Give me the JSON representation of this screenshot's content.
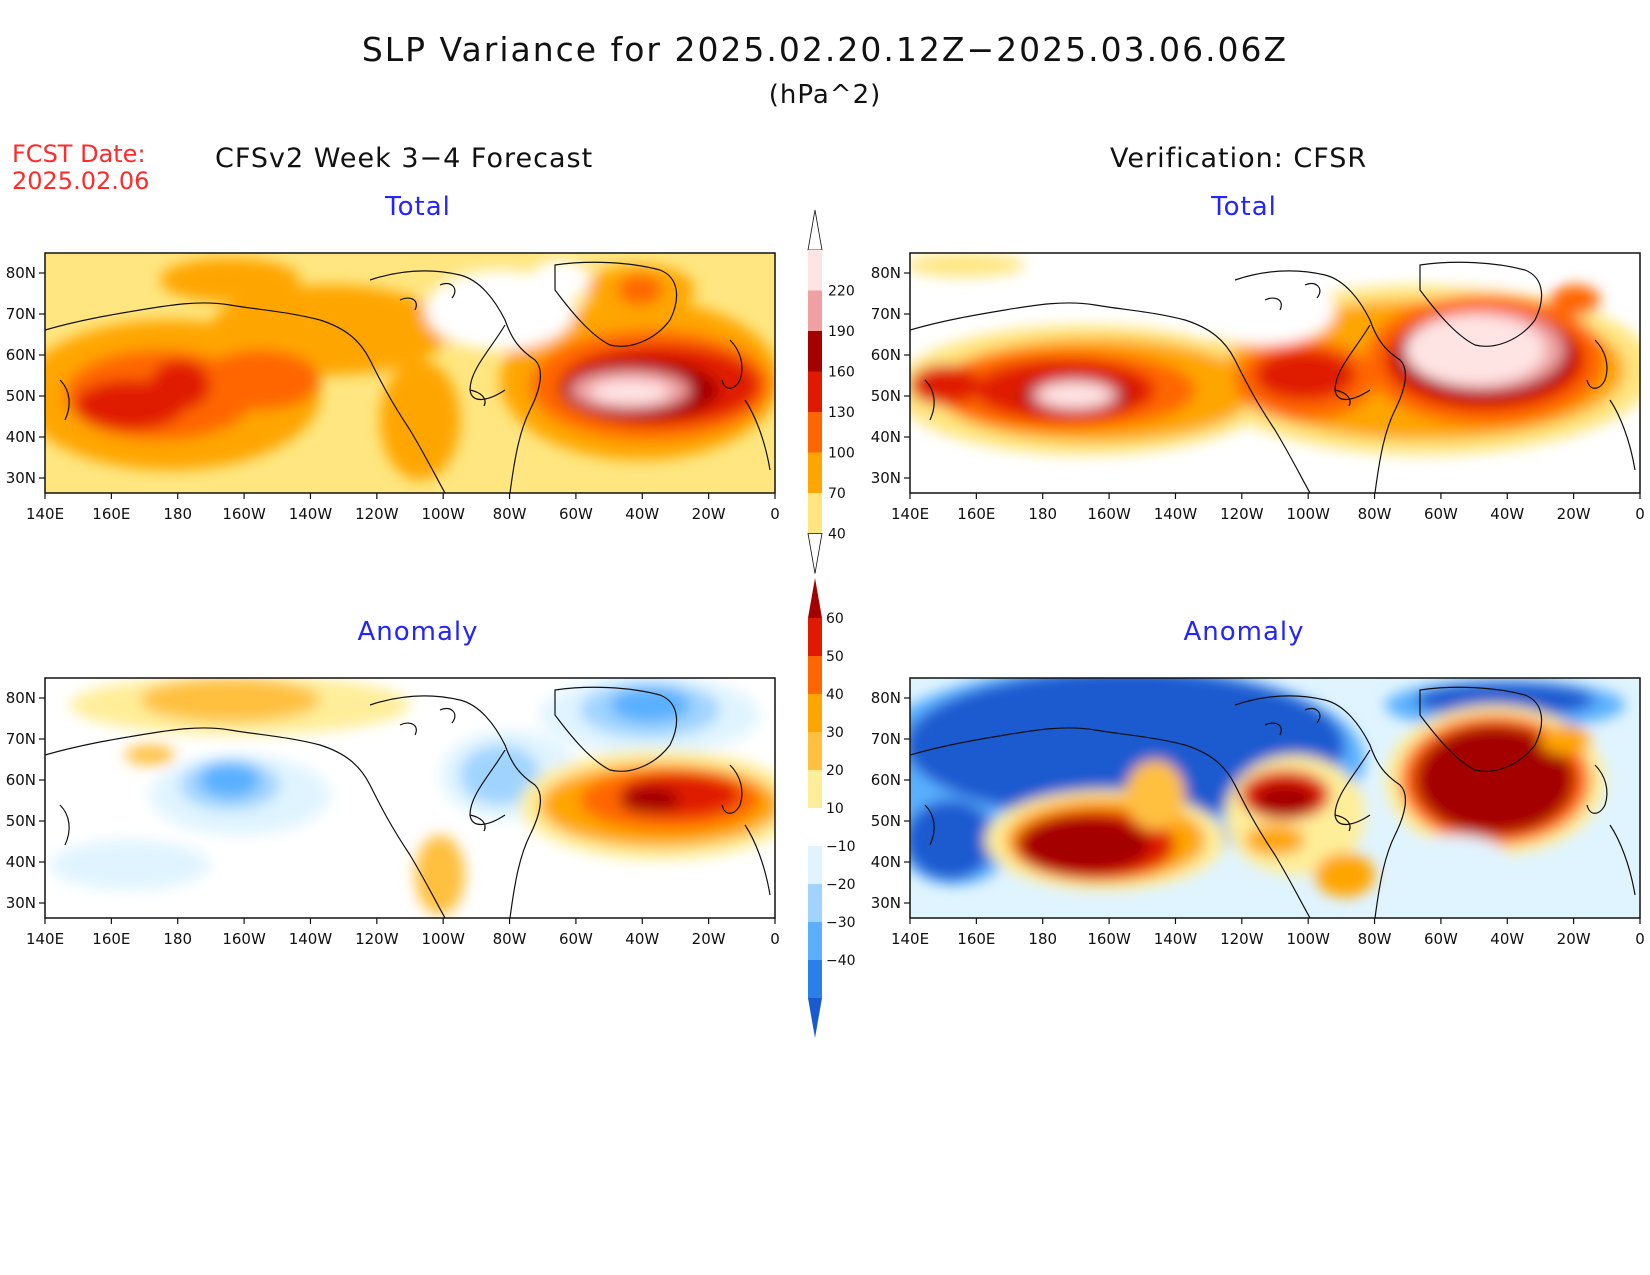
{
  "title": "SLP Variance for 2025.02.20.12Z−2025.03.06.06Z",
  "units": "(hPa^2)",
  "fcst_label": "FCST Date:",
  "fcst_date": "2025.02.06",
  "left_heading": "CFSv2 Week 3−4 Forecast",
  "right_heading": "Verification: CFSR",
  "axes": {
    "lon_ticks": [
      "140E",
      "160E",
      "180",
      "160W",
      "140W",
      "120W",
      "100W",
      "80W",
      "60W",
      "40W",
      "20W",
      "0"
    ],
    "lat_ticks": [
      "80N",
      "70N",
      "60N",
      "50N",
      "40N",
      "30N"
    ]
  },
  "panels": [
    {
      "id": "forecast-total",
      "subtitle": "Total"
    },
    {
      "id": "verification-total",
      "subtitle": "Total"
    },
    {
      "id": "forecast-anomaly",
      "subtitle": "Anomaly"
    },
    {
      "id": "verification-anomaly",
      "subtitle": "Anomaly"
    }
  ],
  "colorbars": {
    "total": {
      "labels": [
        "40",
        "70",
        "100",
        "130",
        "160",
        "190",
        "220"
      ],
      "colors": [
        "#ffe680",
        "#ffa500",
        "#ff6600",
        "#e01a00",
        "#a50000",
        "#f0a0a0",
        "#ffe4e4"
      ]
    },
    "anomaly": {
      "labels": [
        "60",
        "50",
        "40",
        "30",
        "20",
        "10",
        "−10",
        "−20",
        "−30",
        "−40"
      ],
      "colors": [
        "#a50000",
        "#e01a00",
        "#ff6600",
        "#ffa500",
        "#ffc040",
        "#ffee99",
        "#ffffff",
        "#e0f4ff",
        "#a0d4ff",
        "#5ab0ff",
        "#2a80e8",
        "#1a5ad0"
      ]
    }
  }
}
